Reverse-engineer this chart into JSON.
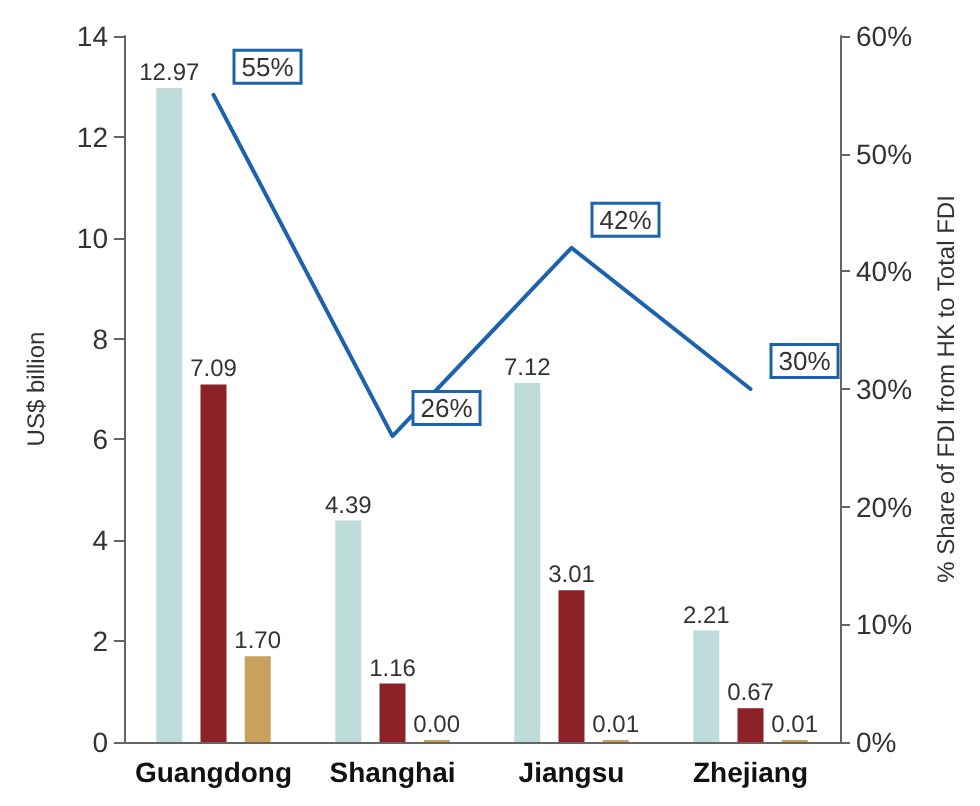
{
  "chart_data": {
    "type": "bar",
    "categories": [
      "Guangdong",
      "Shanghai",
      "Jiangsu",
      "Zhejiang"
    ],
    "series": [
      {
        "color": "#bddcda",
        "values": [
          12.97,
          4.39,
          7.12,
          2.21
        ],
        "value_labels": [
          "12.97",
          "4.39",
          "7.12",
          "2.21"
        ]
      },
      {
        "color": "#8c2127",
        "values": [
          7.09,
          1.16,
          3.01,
          0.67
        ],
        "value_labels": [
          "7.09",
          "1.16",
          "3.01",
          "0.67"
        ]
      },
      {
        "color": "#c9a05c",
        "values": [
          1.7,
          0,
          0.01,
          0.01
        ],
        "value_labels": [
          "1.70",
          "0.00",
          "0.01",
          "0.01"
        ]
      },
      {
        "type": "line",
        "axis": "y2",
        "color": "#1d62ad",
        "values": [
          55,
          26,
          42,
          30
        ],
        "value_labels": [
          "55%",
          "26%",
          "42%",
          "30%"
        ]
      }
    ],
    "ylabel": "US$ billion",
    "y2label": "% Share of FDI from HK to Total FDI",
    "ylim": [
      0,
      14
    ],
    "yticks": [
      0,
      2,
      4,
      6,
      8,
      10,
      12,
      14
    ],
    "y2lim": [
      0,
      60
    ],
    "y2ticks": [
      {
        "value": 0,
        "label": "0%"
      },
      {
        "value": 10,
        "label": "10%"
      },
      {
        "value": 20,
        "label": "20%"
      },
      {
        "value": 30,
        "label": "30%"
      },
      {
        "value": 40,
        "label": "40%"
      },
      {
        "value": 50,
        "label": "50%"
      },
      {
        "value": 60,
        "label": "60%"
      }
    ],
    "grid": false,
    "marker": "none",
    "line_style": "solid"
  }
}
